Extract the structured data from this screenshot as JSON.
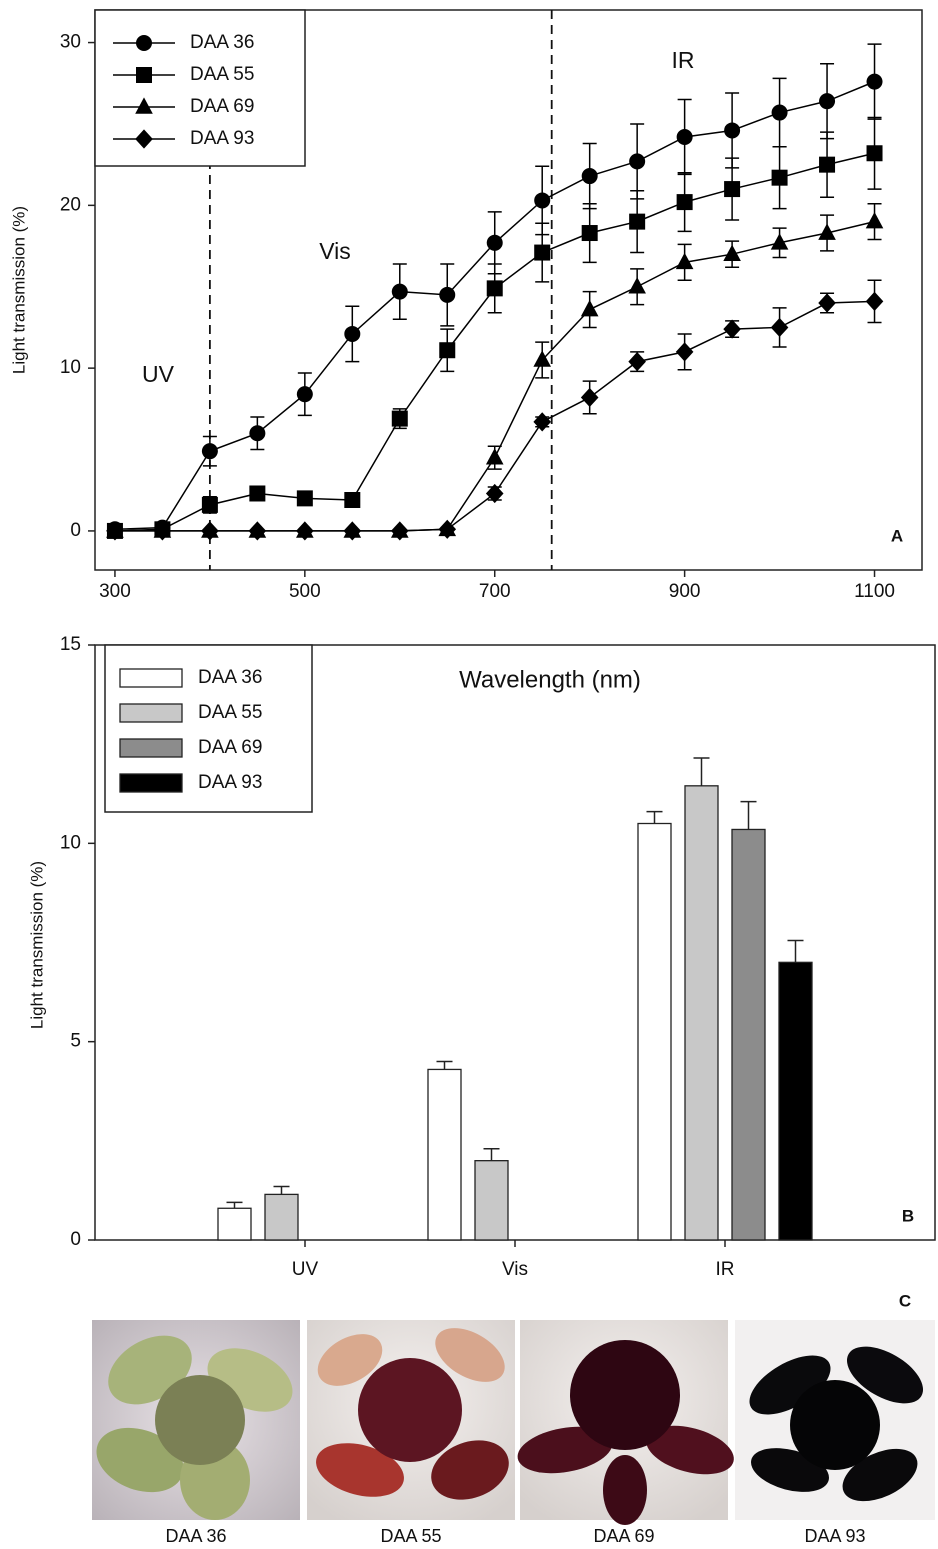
{
  "chart_data": [
    {
      "type": "line",
      "panel_label": "A",
      "ylabel": "Light transmission (%)",
      "xlabel": "Wavelength (nm)",
      "x": [
        300,
        350,
        400,
        450,
        500,
        550,
        600,
        650,
        700,
        750,
        800,
        850,
        900,
        950,
        1000,
        1050,
        1100
      ],
      "xlim": [
        279,
        1150
      ],
      "xticks": [
        300,
        500,
        700,
        900,
        1100
      ],
      "ylim": [
        -2.4,
        32
      ],
      "yticks": [
        0,
        10,
        20,
        30
      ],
      "vlines": [
        400,
        760
      ],
      "annotations": [
        "UV",
        "Vis",
        "IR"
      ],
      "series": [
        {
          "name": "DAA 36",
          "marker": "circle",
          "color": "#000000",
          "values": [
            0.1,
            0.2,
            4.9,
            6.0,
            8.4,
            12.1,
            14.7,
            14.5,
            17.7,
            20.3,
            21.8,
            22.7,
            24.2,
            24.6,
            25.7,
            26.4,
            27.6
          ],
          "errors": [
            0.1,
            0.1,
            0.9,
            1.0,
            1.3,
            1.7,
            1.7,
            1.9,
            1.9,
            2.1,
            2.0,
            2.3,
            2.3,
            2.3,
            2.1,
            2.3,
            2.3
          ]
        },
        {
          "name": "DAA 55",
          "marker": "square",
          "color": "#000000",
          "values": [
            0,
            0.1,
            1.6,
            2.3,
            2.0,
            1.9,
            6.9,
            11.1,
            14.9,
            17.1,
            18.3,
            19.0,
            20.2,
            21.0,
            21.7,
            22.5,
            23.2
          ],
          "errors": [
            0,
            0,
            0.5,
            0.3,
            0.2,
            0.2,
            0.6,
            1.3,
            1.5,
            1.8,
            1.8,
            1.9,
            1.8,
            1.9,
            1.9,
            2.0,
            2.2
          ]
        },
        {
          "name": "DAA 69",
          "marker": "triangle",
          "color": "#000000",
          "values": [
            0,
            0,
            0,
            0,
            0,
            0,
            0,
            0.1,
            4.5,
            10.5,
            13.6,
            15.0,
            16.5,
            17.0,
            17.7,
            18.3,
            19.0
          ],
          "errors": [
            0,
            0,
            0,
            0,
            0,
            0,
            0,
            0,
            0.7,
            1.1,
            1.1,
            1.1,
            1.1,
            0.8,
            0.9,
            1.1,
            1.1
          ]
        },
        {
          "name": "DAA 93",
          "marker": "diamond",
          "color": "#000000",
          "values": [
            0,
            0,
            0,
            0,
            0,
            0,
            0,
            0.1,
            2.3,
            6.7,
            8.2,
            10.4,
            11.0,
            12.4,
            12.5,
            14.0,
            14.1
          ],
          "errors": [
            0,
            0,
            0,
            0,
            0,
            0,
            0,
            0,
            0.4,
            0.3,
            1.0,
            0.6,
            1.1,
            0.5,
            1.2,
            0.6,
            1.3
          ]
        }
      ]
    },
    {
      "type": "bar",
      "panel_label": "B",
      "ylabel": "Light transmission (%)",
      "categories": [
        "UV",
        "Vis",
        "IR"
      ],
      "ylim": [
        0,
        15
      ],
      "yticks": [
        0,
        5,
        10,
        15
      ],
      "series": [
        {
          "name": "DAA 36",
          "color": "#ffffff",
          "values": [
            0.8,
            4.3,
            10.5
          ],
          "errors": [
            0.15,
            0.2,
            0.3
          ]
        },
        {
          "name": "DAA 55",
          "color": "#c8c8c8",
          "values": [
            1.15,
            2.0,
            11.45
          ],
          "errors": [
            0.2,
            0.3,
            0.7
          ]
        },
        {
          "name": "DAA 69",
          "color": "#8c8c8c",
          "values": [
            0,
            0,
            10.35
          ],
          "errors": [
            null,
            null,
            0.7
          ]
        },
        {
          "name": "DAA 93",
          "color": "#000000",
          "values": [
            0,
            0,
            7.0
          ],
          "errors": [
            null,
            null,
            0.55
          ]
        }
      ]
    }
  ],
  "panel_c": {
    "label": "C",
    "captions": [
      "DAA 36",
      "DAA 55",
      "DAA 69",
      "DAA 93"
    ]
  }
}
